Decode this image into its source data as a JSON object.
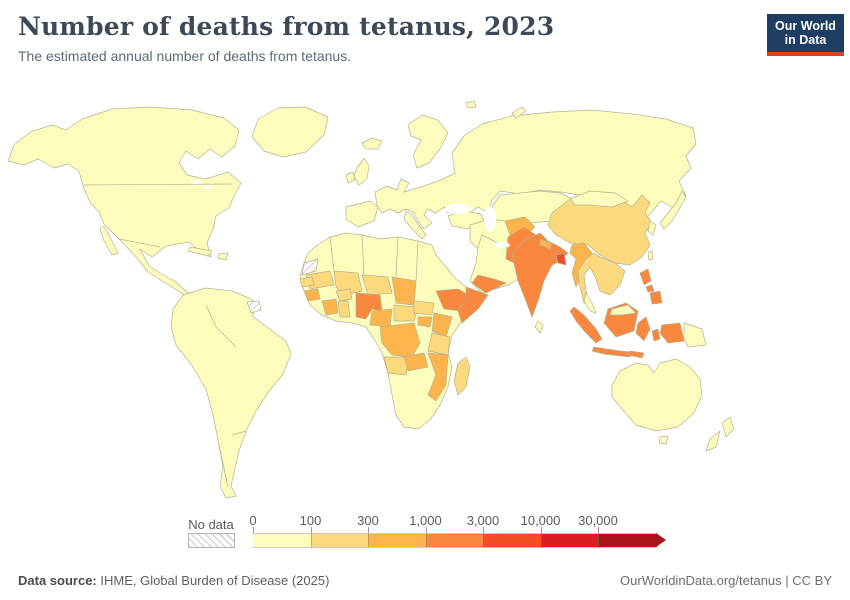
{
  "header": {
    "title": "Number of deaths from tetanus, 2023",
    "subtitle": "The estimated annual number of deaths from tetanus.",
    "logo": {
      "line1": "Our World",
      "line2": "in Data",
      "bg_color": "#1d3d63",
      "accent_color": "#dc3e26"
    }
  },
  "legend": {
    "no_data_label": "No data",
    "thresholds": [
      "0",
      "100",
      "300",
      "1,000",
      "3,000",
      "10,000",
      "30,000"
    ],
    "colors": [
      "#fcfcbd",
      "#fdd97e",
      "#fdb44c",
      "#f9873d",
      "#f34d23",
      "#d71e21",
      "#a81419"
    ],
    "arrow_color": "#a81419"
  },
  "footer": {
    "source_label": "Data source:",
    "source_text": " IHME, Global Burden of Disease (2025)",
    "right_text": "OurWorldinData.org/tetanus | CC BY"
  },
  "chart_data": {
    "type": "heatmap",
    "subtype": "world-choropleth-map",
    "title": "Number of deaths from tetanus, 2023",
    "unit": "deaths",
    "legend_position": "bottom",
    "bin_labels": [
      "0–100",
      "100–300",
      "300–1,000",
      "1,000–3,000",
      "3,000–10,000",
      "10,000–30,000",
      "30,000+"
    ],
    "bin_colors": [
      "#fcfcbd",
      "#fdd97e",
      "#fdb44c",
      "#f9873d",
      "#f34d23",
      "#d71e21",
      "#a81419"
    ],
    "no_data_regions": [
      "Western Sahara",
      "French Guiana"
    ],
    "country_bins": {
      "greenland": 0,
      "iceland": 0,
      "north-america": 0,
      "baja-california": 0,
      "cuba": 0,
      "hispaniola": 0,
      "south-america": 0,
      "french-guiana": "no_data",
      "western-sahara": "no_data",
      "europe-russia": 0,
      "scandinavia": 0,
      "finland": 0,
      "uk": 0,
      "ireland": 0,
      "iberia": 0,
      "italy": 0,
      "turkey": 0,
      "central-asia": 0,
      "iran-iraq": 0,
      "arabia": 0,
      "yemen": 3,
      "africa-base": 0,
      "mauritania": 1,
      "mali": 1,
      "niger": 1,
      "chad": 2,
      "senegal": 1,
      "guinea": 2,
      "burkina-faso": 1,
      "cote-divoire": 2,
      "ghana": 1,
      "nigeria": 3,
      "cameroon": 2,
      "central-african-republic": 1,
      "south-sudan": 1,
      "ethiopia": 3,
      "somalia": 3,
      "uganda": 2,
      "kenya": 2,
      "drc": 2,
      "tanzania": 1,
      "angola": 1,
      "zambia": 2,
      "mozambique": 2,
      "madagascar": 1,
      "afghanistan": 2,
      "pakistan": 3,
      "india": 3,
      "nepal": 2,
      "bangladesh": 4,
      "sri-lanka": 0,
      "china": 1,
      "mongolia": 0,
      "korea": 0,
      "japan": 0,
      "taiwan": 0,
      "myanmar": 2,
      "indochina": 1,
      "malay-peninsula": 0,
      "sumatra": 3,
      "java": 3,
      "borneo": 3,
      "malaysian-borneo": 0,
      "sulawesi": 3,
      "lesser-sunda": 3,
      "moluccas": 3,
      "west-papua": 3,
      "papua-new-guinea": 0,
      "luzon": 3,
      "visayas": 3,
      "mindanao": 3,
      "australia": 0,
      "tasmania": 0,
      "new-zealand-north": 0,
      "new-zealand-south": 0,
      "svalbard": 0,
      "novaya-zemlya": 0
    }
  }
}
